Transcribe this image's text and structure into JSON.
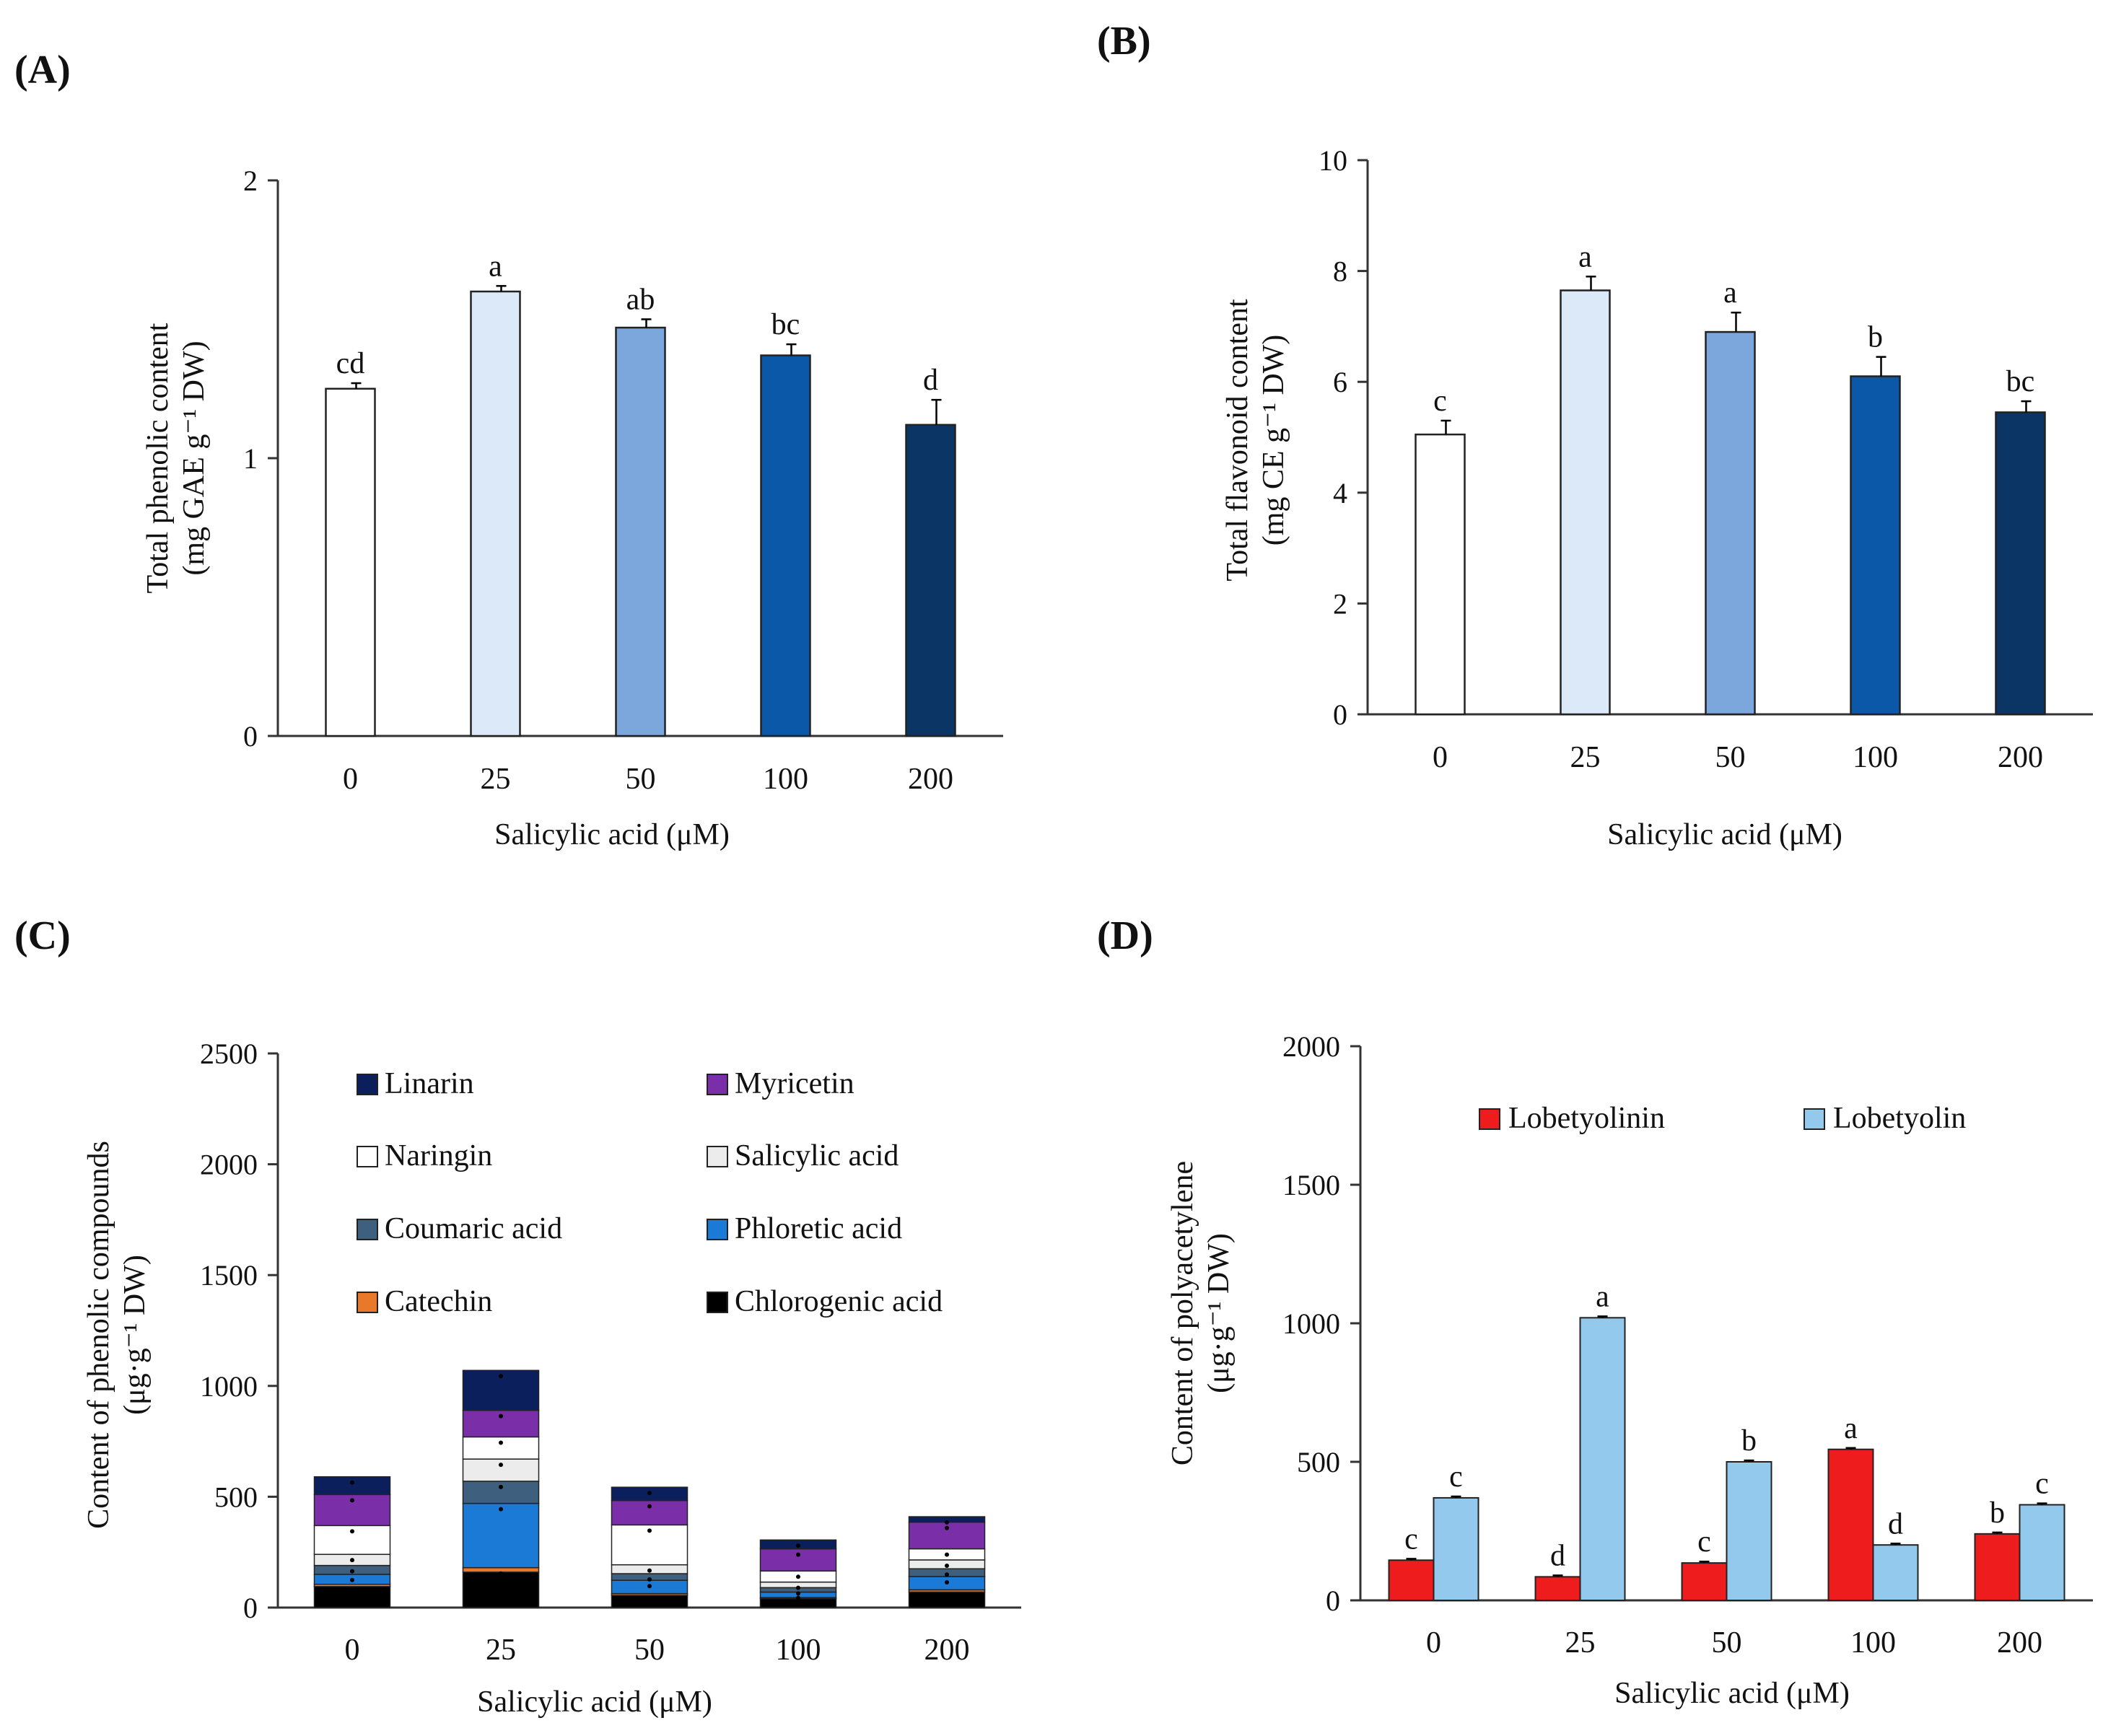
{
  "chart_data": [
    {
      "panel_label": "(A)",
      "type": "bar",
      "xlabel": "Salicylic acid (μM)",
      "ylabel_line1": "Total phenolic content",
      "ylabel_line2": "(mg GAE g⁻¹ DW)",
      "ylim": [
        0,
        2
      ],
      "yticks": [
        0,
        1,
        2
      ],
      "categories": [
        "0",
        "25",
        "50",
        "100",
        "200"
      ],
      "values": [
        1.25,
        1.6,
        1.47,
        1.37,
        1.12
      ],
      "errors": [
        0.02,
        0.02,
        0.03,
        0.04,
        0.09
      ],
      "letters": [
        "cd",
        "a",
        "ab",
        "bc",
        "d"
      ],
      "colors": [
        "#ffffff",
        "#dce9f8",
        "#7ba7dd",
        "#0b57a8",
        "#0a3565"
      ]
    },
    {
      "panel_label": "(B)",
      "type": "bar",
      "xlabel": "Salicylic acid (μM)",
      "ylabel_line1": "Total flavonoid content",
      "ylabel_line2": "(mg CE g⁻¹ DW)",
      "ylim": [
        0,
        10
      ],
      "yticks": [
        0,
        2,
        4,
        6,
        8,
        10
      ],
      "categories": [
        "0",
        "25",
        "50",
        "100",
        "200"
      ],
      "values": [
        5.05,
        7.65,
        6.9,
        6.1,
        5.45
      ],
      "errors": [
        0.25,
        0.25,
        0.35,
        0.35,
        0.2
      ],
      "letters": [
        "c",
        "a",
        "a",
        "b",
        "bc"
      ],
      "colors": [
        "#ffffff",
        "#dce9f8",
        "#7ba7dd",
        "#0b57a8",
        "#0a3565"
      ]
    },
    {
      "panel_label": "(C)",
      "type": "stacked-bar",
      "xlabel": "Salicylic acid (μM)",
      "ylabel_line1": "Content of phenolic compounds",
      "ylabel_line2": "(μg·g⁻¹ DW)",
      "ylim": [
        0,
        2500
      ],
      "yticks": [
        0,
        500,
        1000,
        1500,
        2000,
        2500
      ],
      "categories": [
        "0",
        "25",
        "50",
        "100",
        "200"
      ],
      "legend_order": [
        "Linarin",
        "Myricetin",
        "Naringin",
        "Salicylic acid",
        "Coumaric acid",
        "Phloretic acid",
        "Catechin",
        "Chlorogenic acid"
      ],
      "series": [
        {
          "name": "Chlorogenic acid",
          "color": "#000000",
          "values": [
            95,
            160,
            55,
            40,
            70
          ]
        },
        {
          "name": "Catechin",
          "color": "#e8782a",
          "values": [
            10,
            20,
            8,
            5,
            10
          ]
        },
        {
          "name": "Phloretic acid",
          "color": "#1a7ad6",
          "values": [
            45,
            290,
            60,
            25,
            60
          ]
        },
        {
          "name": "Coumaric acid",
          "color": "#3e5f7e",
          "values": [
            40,
            100,
            30,
            20,
            35
          ]
        },
        {
          "name": "Salicylic acid",
          "color": "#ececec",
          "values": [
            50,
            100,
            40,
            25,
            40
          ]
        },
        {
          "name": "Naringin",
          "color": "#ffffff",
          "values": [
            130,
            100,
            180,
            50,
            50
          ]
        },
        {
          "name": "Myricetin",
          "color": "#7a2fa8",
          "values": [
            140,
            120,
            110,
            100,
            120
          ]
        },
        {
          "name": "Linarin",
          "color": "#0b1f5c",
          "values": [
            80,
            180,
            60,
            40,
            25
          ]
        }
      ]
    },
    {
      "panel_label": "(D)",
      "type": "grouped-bar",
      "xlabel": "Salicylic acid (μM)",
      "ylabel_line1": "Content of polyacetylene",
      "ylabel_line2": "(μg·g⁻¹ DW)",
      "ylim": [
        0,
        2000
      ],
      "yticks": [
        0,
        500,
        1000,
        1500,
        2000
      ],
      "categories": [
        "0",
        "25",
        "50",
        "100",
        "200"
      ],
      "series": [
        {
          "name": "Lobetyolinin",
          "color": "#ee1c1c",
          "values": [
            145,
            85,
            135,
            545,
            240
          ],
          "errors": [
            5,
            5,
            5,
            5,
            5
          ],
          "letters": [
            "c",
            "d",
            "c",
            "a",
            "b"
          ]
        },
        {
          "name": "Lobetyolin",
          "color": "#92c9ec",
          "values": [
            370,
            1020,
            500,
            200,
            345
          ],
          "errors": [
            5,
            5,
            5,
            5,
            5
          ],
          "letters": [
            "c",
            "a",
            "b",
            "d",
            "c"
          ]
        }
      ]
    }
  ]
}
